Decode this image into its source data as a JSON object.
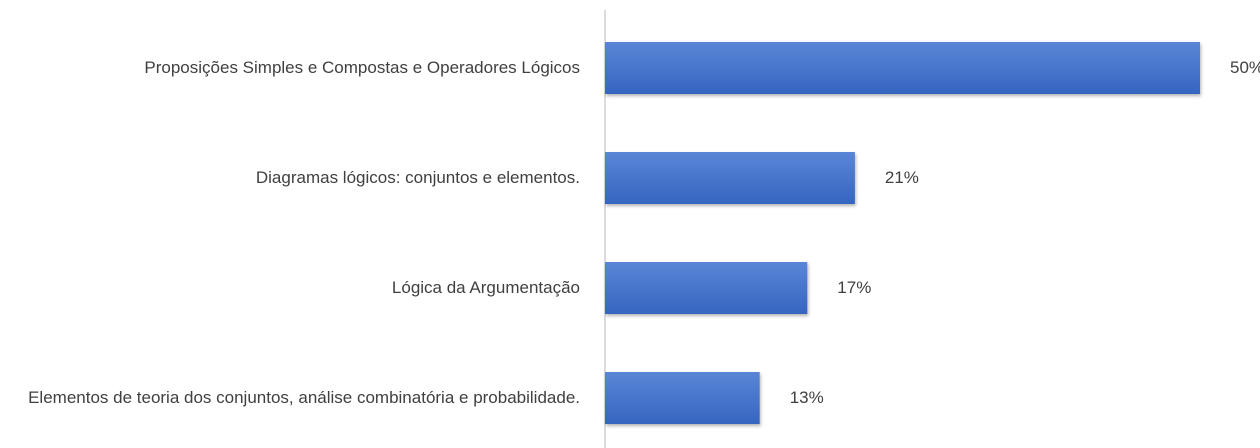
{
  "chart_data": {
    "type": "hbar",
    "categories": [
      "Proposições Simples e Compostas e Operadores Lógicos",
      "Diagramas lógicos: conjuntos e elementos.",
      "Lógica da Argumentação",
      "Elementos de teoria dos conjuntos, análise combinatória e probabilidade."
    ],
    "values": [
      50,
      21,
      17,
      13
    ],
    "value_labels": [
      "50%",
      "21%",
      "17%",
      "13%"
    ],
    "color": "#4472c4",
    "xlim": [
      0,
      50
    ]
  }
}
